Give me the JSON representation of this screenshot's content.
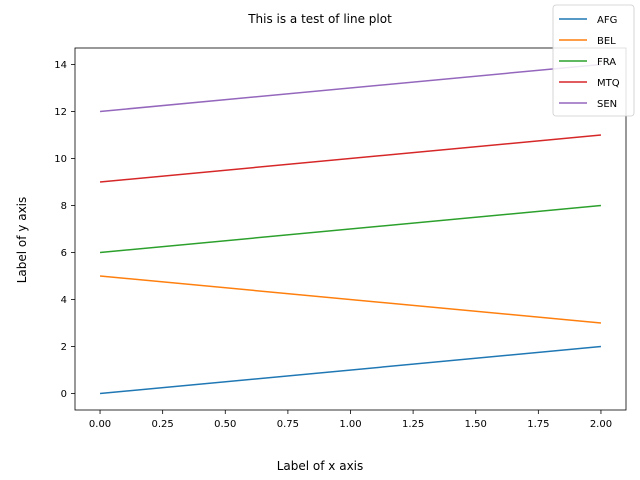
{
  "chart_data": {
    "type": "line",
    "title": "This is a test of line plot",
    "xlabel": "Label of x axis",
    "ylabel": "Label of y axis",
    "x": [
      0,
      2
    ],
    "xlim": [
      -0.1,
      2.1
    ],
    "ylim": [
      -0.7,
      14.7
    ],
    "xticks": [
      0.0,
      0.25,
      0.5,
      0.75,
      1.0,
      1.25,
      1.5,
      1.75,
      2.0
    ],
    "xtick_labels": [
      "0.00",
      "0.25",
      "0.50",
      "0.75",
      "1.00",
      "1.25",
      "1.50",
      "1.75",
      "2.00"
    ],
    "yticks": [
      0,
      2,
      4,
      6,
      8,
      10,
      12,
      14
    ],
    "ytick_labels": [
      "0",
      "2",
      "4",
      "6",
      "8",
      "10",
      "12",
      "14"
    ],
    "legend_position": "top-right",
    "series": [
      {
        "name": "AFG",
        "color": "#1f77b4",
        "values": [
          0,
          2
        ]
      },
      {
        "name": "BEL",
        "color": "#ff7f0e",
        "values": [
          5,
          3
        ]
      },
      {
        "name": "FRA",
        "color": "#2ca02c",
        "values": [
          6,
          8
        ]
      },
      {
        "name": "MTQ",
        "color": "#d62728",
        "values": [
          9,
          11
        ]
      },
      {
        "name": "SEN",
        "color": "#9467bd",
        "values": [
          12,
          14
        ]
      }
    ]
  }
}
